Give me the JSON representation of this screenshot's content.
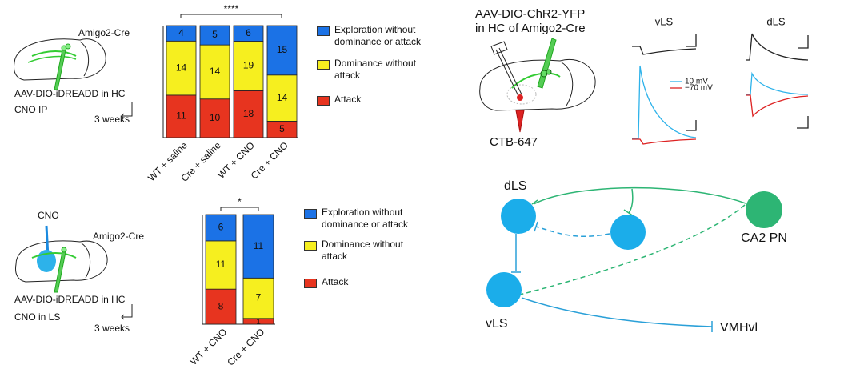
{
  "chart_data": [
    {
      "type": "stacked_bar",
      "annotation": "****",
      "categories": [
        "WT + saline",
        "Cre + saline",
        "WT + CNO",
        "Cre + CNO"
      ],
      "series": [
        {
          "name": "Exploration without dominance or attack",
          "color": "#1b72e6",
          "values": [
            4,
            5,
            6,
            15
          ]
        },
        {
          "name": "Dominance without attack",
          "color": "#f6ef1f",
          "values": [
            14,
            14,
            19,
            14
          ]
        },
        {
          "name": "Attack",
          "color": "#e7341f",
          "values": [
            11,
            10,
            18,
            5
          ]
        }
      ]
    },
    {
      "type": "stacked_bar",
      "annotation": "*",
      "categories": [
        "WT + CNO",
        "Cre + CNO"
      ],
      "series": [
        {
          "name": "Exploration without dominance or attack",
          "color": "#1b72e6",
          "values": [
            6,
            11
          ]
        },
        {
          "name": "Dominance without attack",
          "color": "#f6ef1f",
          "values": [
            11,
            7
          ]
        },
        {
          "name": "Attack",
          "color": "#e7341f",
          "values": [
            8,
            1
          ]
        }
      ]
    }
  ],
  "panel_a": {
    "mouse": "Amigo2-Cre",
    "virus": "AAV-DIO-iDREADD in HC",
    "treatment": "CNO IP",
    "delay": "3 weeks"
  },
  "panel_b": {
    "drug": "CNO",
    "mouse": "Amigo2-Cre",
    "virus": "AAV-DIO-iDREADD in HC",
    "treatment": "CNO in LS",
    "delay": "3 weeks"
  },
  "panel_c": {
    "virus_line1": "AAV-DIO-ChR2-YFP",
    "virus_line2": "in HC of Amigo2-Cre",
    "tracer": "CTB-647",
    "trace_left": "vLS",
    "trace_right": "dLS",
    "legend": [
      "10 mV",
      "−70 mV"
    ]
  },
  "panel_d": {
    "nodes": [
      "dLS",
      "vLS",
      "CA2 PN",
      "VMHvl"
    ]
  }
}
